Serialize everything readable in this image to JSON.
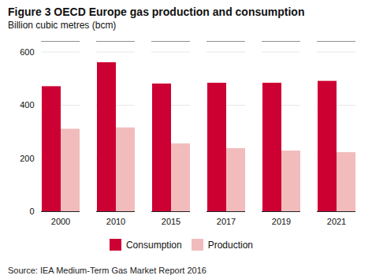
{
  "chart_data": {
    "type": "bar",
    "title": "Figure 3 OECD Europe gas production and consumption",
    "subtitle": "Billion cubic metres (bcm)",
    "source": "Source: IEA Medium-Term Gas Market Report 2016",
    "categories": [
      "2000",
      "2010",
      "2015",
      "2017",
      "2019",
      "2021"
    ],
    "series": [
      {
        "name": "Consumption",
        "color": "#CC0033",
        "values": [
          470,
          560,
          480,
          483,
          483,
          490
        ]
      },
      {
        "name": "Production",
        "color": "#F2BCBC",
        "values": [
          310,
          315,
          255,
          237,
          228,
          222
        ]
      }
    ],
    "ylim": [
      0,
      640
    ],
    "yticks": [
      0,
      200,
      400,
      600
    ],
    "grid": true,
    "legend": "bottom"
  }
}
